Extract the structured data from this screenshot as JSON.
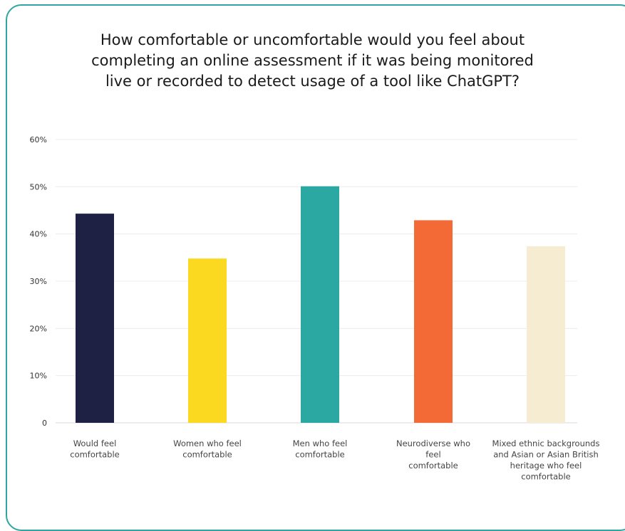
{
  "chart_data": {
    "type": "bar",
    "title": "How comfortable or uncomfortable would you feel about\ncompleting an online assessment if it was being monitored\nlive or recorded to detect usage of a tool like ChatGPT?",
    "categories": [
      "Would feel\ncomfortable",
      "Women who feel\ncomfortable",
      "Men who feel\ncomfortable",
      "Neurodiverse who\nfeel\ncomfortable",
      "Mixed ethnic backgrounds\nand Asian or Asian British\nheritage who feel\ncomfortable"
    ],
    "values": [
      44.3,
      34.8,
      50.1,
      42.9,
      37.4
    ],
    "colors": [
      "#1e2044",
      "#fbd920",
      "#2aa8a1",
      "#f46a36",
      "#f5ecd1"
    ],
    "yticks": [
      "0",
      "10%",
      "20%",
      "30%",
      "40%",
      "50%",
      "60%"
    ],
    "ylim": [
      0,
      60
    ],
    "grid": true,
    "xlabel": "",
    "ylabel": ""
  }
}
